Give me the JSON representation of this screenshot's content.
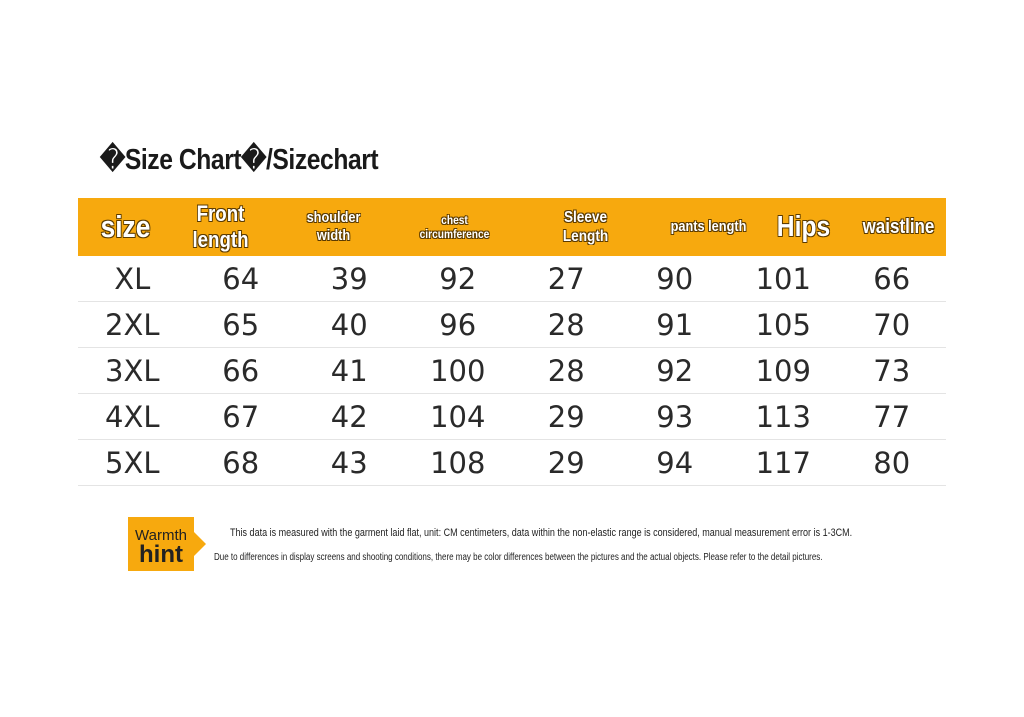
{
  "title": "�Size Chart�/Sizechart",
  "table": {
    "header": [
      "size",
      "Front length",
      "shoulder width",
      "chest circumference",
      "Sleeve Length",
      "pants length",
      "Hips",
      "waistline"
    ],
    "rows": [
      [
        "XL",
        64,
        39,
        92,
        27,
        90,
        101,
        66
      ],
      [
        "2XL",
        65,
        40,
        96,
        28,
        91,
        105,
        70
      ],
      [
        "3XL",
        66,
        41,
        100,
        28,
        92,
        109,
        73
      ],
      [
        "4XL",
        67,
        42,
        104,
        29,
        93,
        113,
        77
      ],
      [
        "5XL",
        68,
        43,
        108,
        29,
        94,
        117,
        80
      ]
    ]
  },
  "note": {
    "badge_top": "Warmth",
    "badge_bottom": "hint",
    "lines": [
      "This data is measured with the garment laid flat, unit: CM centimeters, data within the non-elastic range is considered, manual measurement error is 1-3CM.",
      "Due to differences in display screens and shooting conditions, there may be color differences between the pictures and the actual objects. Please refer to the detail pictures."
    ]
  }
}
